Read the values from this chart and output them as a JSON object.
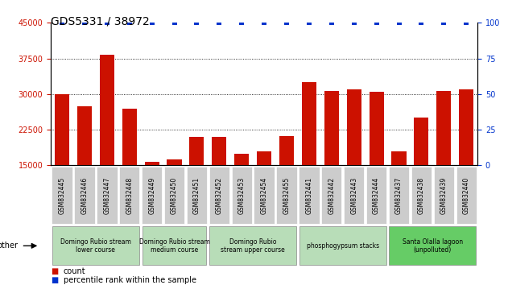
{
  "title": "GDS5331 / 38972",
  "samples": [
    "GSM832445",
    "GSM832446",
    "GSM832447",
    "GSM832448",
    "GSM832449",
    "GSM832450",
    "GSM832451",
    "GSM832452",
    "GSM832453",
    "GSM832454",
    "GSM832455",
    "GSM832441",
    "GSM832442",
    "GSM832443",
    "GSM832444",
    "GSM832437",
    "GSM832438",
    "GSM832439",
    "GSM832440"
  ],
  "counts": [
    30000,
    27500,
    38200,
    27000,
    15800,
    16300,
    21000,
    21000,
    17500,
    18000,
    21200,
    32500,
    30700,
    31000,
    30400,
    18000,
    25000,
    30700,
    31000
  ],
  "percentiles": [
    100,
    100,
    100,
    100,
    100,
    100,
    100,
    100,
    100,
    100,
    100,
    100,
    100,
    100,
    100,
    100,
    100,
    100,
    100
  ],
  "bar_color": "#cc1100",
  "percentile_color": "#0033cc",
  "left_ylim": [
    15000,
    45000
  ],
  "left_yticks": [
    15000,
    22500,
    30000,
    37500,
    45000
  ],
  "right_ylim": [
    0,
    100
  ],
  "right_yticks": [
    0,
    25,
    50,
    75,
    100
  ],
  "grid_yticks": [
    22500,
    30000,
    37500
  ],
  "groups": [
    {
      "label": "Domingo Rubio stream\nlower course",
      "start": 0,
      "end": 3,
      "color": "#b8ddb8"
    },
    {
      "label": "Domingo Rubio stream\nmedium course",
      "start": 4,
      "end": 6,
      "color": "#b8ddb8"
    },
    {
      "label": "Domingo Rubio\nstream upper course",
      "start": 7,
      "end": 10,
      "color": "#b8ddb8"
    },
    {
      "label": "phosphogypsum stacks",
      "start": 11,
      "end": 14,
      "color": "#b8ddb8"
    },
    {
      "label": "Santa Olalla lagoon\n(unpolluted)",
      "start": 15,
      "end": 18,
      "color": "#66cc66"
    }
  ],
  "other_label": "other",
  "legend_count_label": "count",
  "legend_percentile_label": "percentile rank within the sample",
  "tick_label_fontsize": 5.5,
  "title_fontsize": 10,
  "bar_width": 0.65,
  "tickbox_color": "#cccccc",
  "group_border_color": "#888888"
}
